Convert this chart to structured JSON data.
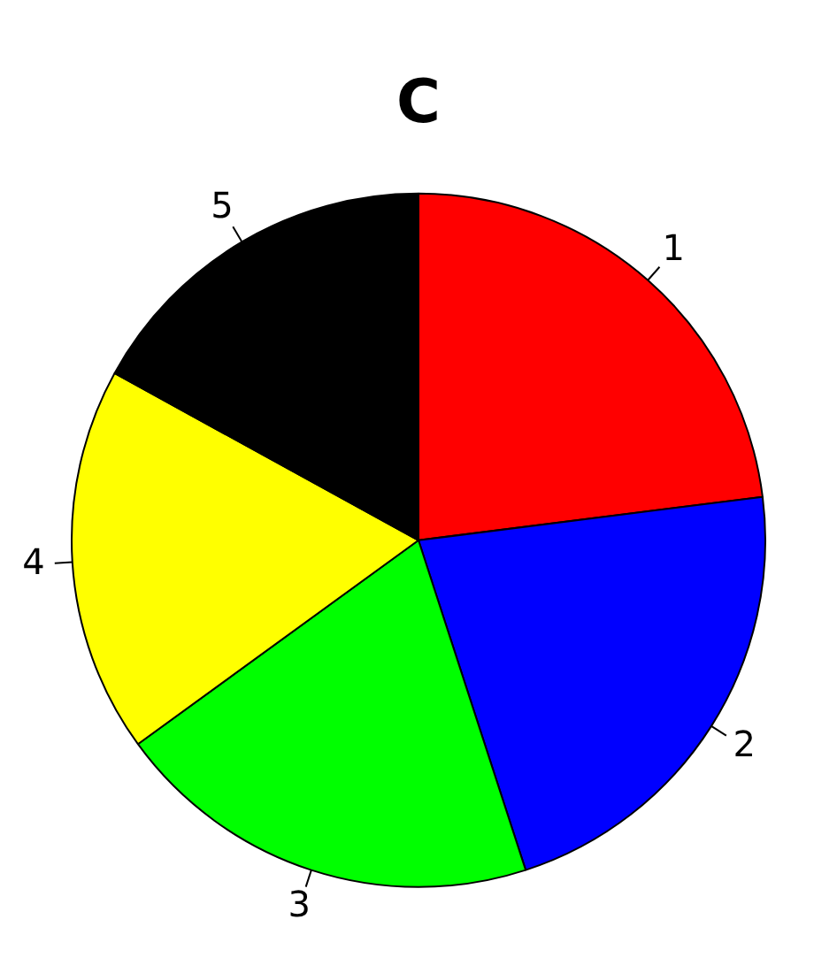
{
  "chart_data": {
    "type": "pie",
    "title": "C",
    "categories": [
      "1",
      "2",
      "3",
      "4",
      "5"
    ],
    "values": [
      23,
      22,
      20,
      18,
      17
    ],
    "colors": [
      "#ff0000",
      "#0000ff",
      "#00ff00",
      "#ffff00",
      "#000000"
    ],
    "legend": false
  }
}
